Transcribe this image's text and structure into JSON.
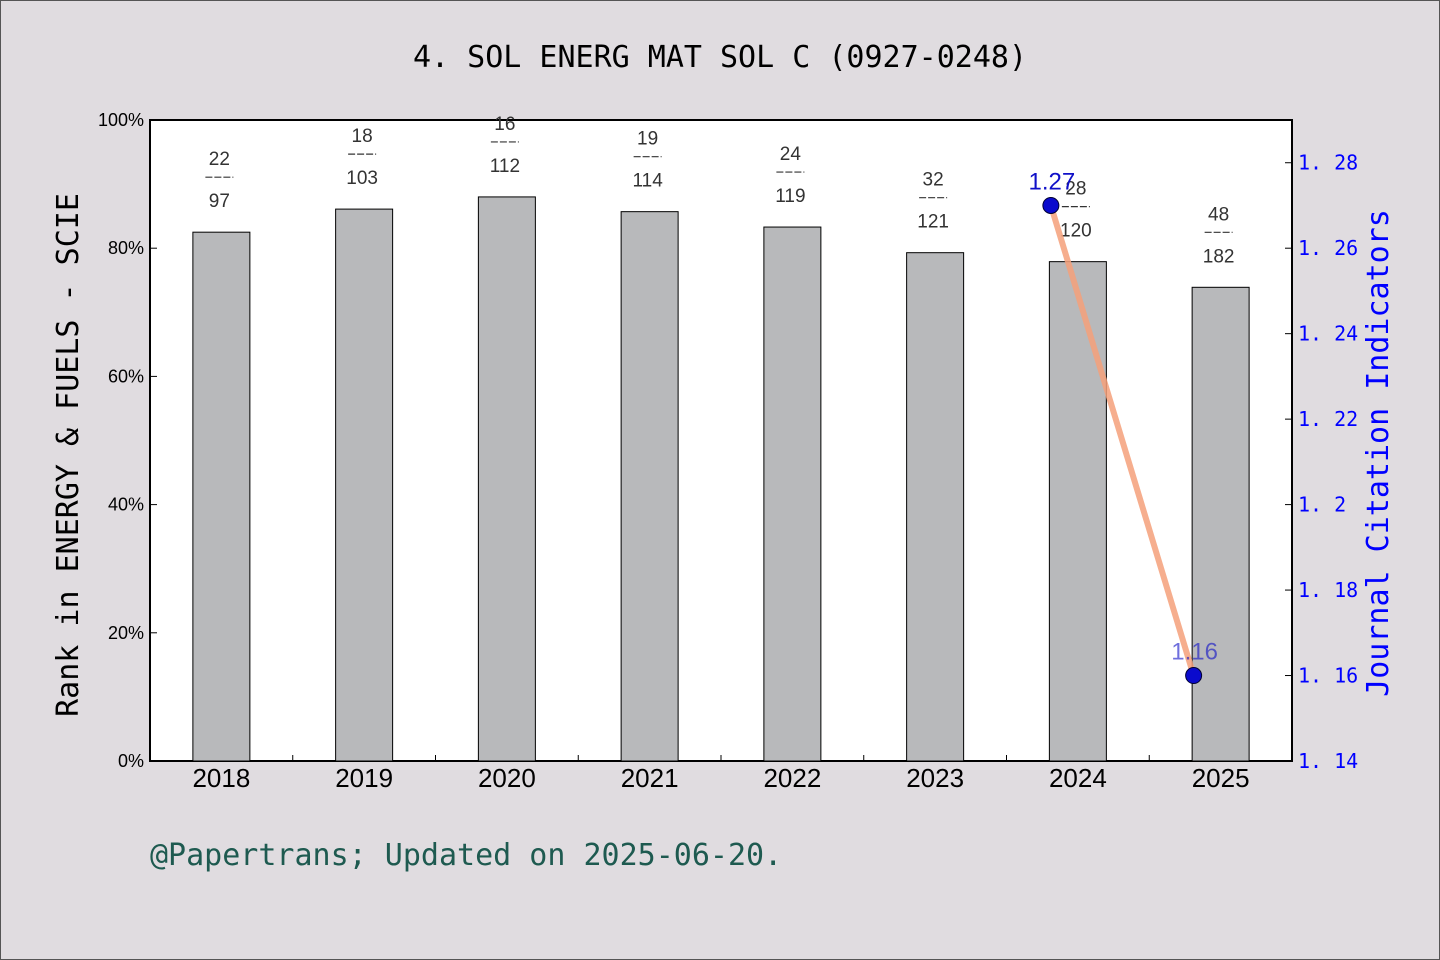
{
  "chart_data": {
    "type": "bar",
    "title": "4. SOL ENERG MAT SOL C (0927-0248)",
    "ylabel": "Rank in ENERGY & FUELS - SCIE",
    "y2label": "Journal Citation Indicators",
    "footer": "@Papertrans; Updated on 2025-06-20.",
    "categories": [
      "2018",
      "2019",
      "2020",
      "2021",
      "2022",
      "2023",
      "2024",
      "2025"
    ],
    "ylim": [
      0,
      100
    ],
    "y_ticks": [
      "0%",
      "20%",
      "40%",
      "60%",
      "80%",
      "100%"
    ],
    "y2lim": [
      1.14,
      1.29
    ],
    "y2_ticks": [
      "1.14",
      "1.16",
      "1.18",
      "1.2",
      "1.22",
      "1.24",
      "1.26",
      "1.28"
    ],
    "series": [
      {
        "type": "bar",
        "values": [
          82.5,
          86.1,
          88.0,
          85.7,
          83.3,
          79.3,
          77.9,
          73.9
        ],
        "rank": [
          "22",
          "18",
          "16",
          "19",
          "24",
          "32",
          "28",
          "48"
        ],
        "total": [
          "97",
          "103",
          "112",
          "114",
          "119",
          "121",
          "120",
          "182"
        ],
        "color": "#b8b9bb"
      },
      {
        "type": "line",
        "axis": "right",
        "x": [
          "2024",
          "2025"
        ],
        "values": [
          1.27,
          1.16
        ],
        "labels": [
          "1.27",
          "1.16"
        ],
        "line_color": "#f5a07a",
        "marker_color": "#0a0acd"
      }
    ],
    "grid": false,
    "legend": "none"
  }
}
